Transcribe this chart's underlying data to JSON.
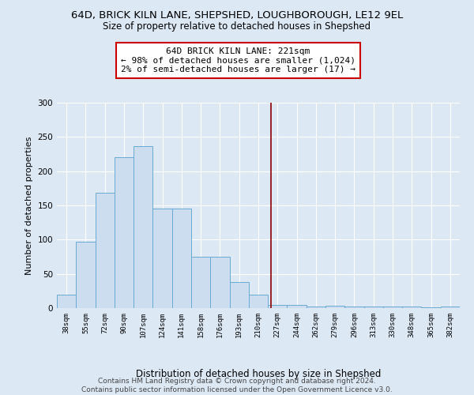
{
  "title1": "64D, BRICK KILN LANE, SHEPSHED, LOUGHBOROUGH, LE12 9EL",
  "title2": "Size of property relative to detached houses in Shepshed",
  "xlabel": "Distribution of detached houses by size in Shepshed",
  "ylabel": "Number of detached properties",
  "footer": "Contains HM Land Registry data © Crown copyright and database right 2024.\nContains public sector information licensed under the Open Government Licence v3.0.",
  "bin_labels": [
    "38sqm",
    "55sqm",
    "72sqm",
    "90sqm",
    "107sqm",
    "124sqm",
    "141sqm",
    "158sqm",
    "176sqm",
    "193sqm",
    "210sqm",
    "227sqm",
    "244sqm",
    "262sqm",
    "279sqm",
    "296sqm",
    "313sqm",
    "330sqm",
    "348sqm",
    "365sqm",
    "382sqm"
  ],
  "bar_values": [
    20,
    97,
    168,
    220,
    237,
    145,
    145,
    75,
    75,
    38,
    20,
    5,
    5,
    2,
    3,
    2,
    2,
    2,
    2,
    1,
    2
  ],
  "bar_color": "#ccddf0",
  "bar_edgecolor": "#6aaad4",
  "bar_linewidth": 0.7,
  "marker_bin_index": 10.65,
  "marker_color": "#8b0000",
  "annotation_text": "64D BRICK KILN LANE: 221sqm\n← 98% of detached houses are smaller (1,024)\n2% of semi-detached houses are larger (17) →",
  "annotation_box_color": "white",
  "annotation_box_edgecolor": "#cc0000",
  "ylim": [
    0,
    300
  ],
  "yticks": [
    0,
    50,
    100,
    150,
    200,
    250,
    300
  ],
  "bg_color": "#dde8f5",
  "plot_bg_color": "#dde8f5",
  "grid_color": "white",
  "title1_fontsize": 9.5,
  "title2_fontsize": 8.5,
  "xlabel_fontsize": 8.5,
  "ylabel_fontsize": 8,
  "annotation_fontsize": 8,
  "footer_fontsize": 6.5
}
